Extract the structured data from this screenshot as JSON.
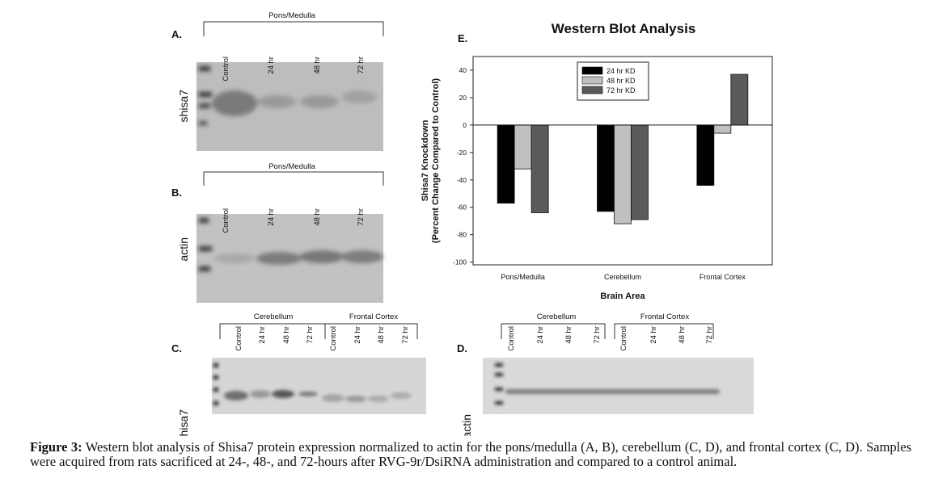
{
  "panels": {
    "A": {
      "letter": "A.",
      "group": "Pons/Medulla",
      "lanes": [
        "Control",
        "24 hr",
        "48 hr",
        "72 hr"
      ],
      "protein": "shisa7"
    },
    "B": {
      "letter": "B.",
      "group": "Pons/Medulla",
      "lanes": [
        "Control",
        "24 hr",
        "48 hr",
        "72 hr"
      ],
      "protein": "actin"
    },
    "C": {
      "letter": "C.",
      "groups": [
        {
          "name": "Cerebellum",
          "lanes": [
            "Control",
            "24 hr",
            "48 hr",
            "72 hr"
          ]
        },
        {
          "name": "Frontal Cortex",
          "lanes": [
            "Control",
            "24 hr",
            "48 hr",
            "72 hr"
          ]
        }
      ],
      "protein": "shisa7"
    },
    "D": {
      "letter": "D.",
      "groups": [
        {
          "name": "Cerebellum",
          "lanes": [
            "Control",
            "24 hr",
            "48 hr",
            "72 hr"
          ]
        },
        {
          "name": "Frontal Cortex",
          "lanes": [
            "Control",
            "24 hr",
            "48 hr",
            "72 hr"
          ]
        }
      ],
      "protein": "actin"
    },
    "E": {
      "letter": "E."
    }
  },
  "chart_data": {
    "type": "bar",
    "title": "Western Blot Analysis",
    "x_label": "Brain Area",
    "y_label": [
      "Shisa7 Knockdown",
      "(Percent Change Compared to Control)"
    ],
    "categories": [
      "Pons/Medulla",
      "Cerebellum",
      "Frontal Cortex"
    ],
    "series": [
      {
        "name": "24 hr KD",
        "color": "#000000",
        "values": [
          -57,
          -63,
          -44
        ]
      },
      {
        "name": "48 hr KD",
        "color": "#c0c0c0",
        "values": [
          -32,
          -72,
          -6
        ]
      },
      {
        "name": "72 hr KD",
        "color": "#5a5a5a",
        "values": [
          -64,
          -69,
          37
        ]
      }
    ],
    "ylim": [
      -102,
      50
    ],
    "yticks": [
      -100,
      -80,
      -60,
      -40,
      -20,
      0,
      20,
      40
    ],
    "zero_line": true,
    "legend": "upper center"
  },
  "caption": {
    "label": "Figure 3:",
    "text": "Western blot analysis of Shisa7 protein expression normalized to actin for the pons/medulla (A, B), cerebellum (C, D), and frontal cortex (C, D). Samples were acquired from rats sacrificed at 24-, 48-, and 72-hours after RVG-9r/DsiRNA administration and compared to a control animal."
  }
}
